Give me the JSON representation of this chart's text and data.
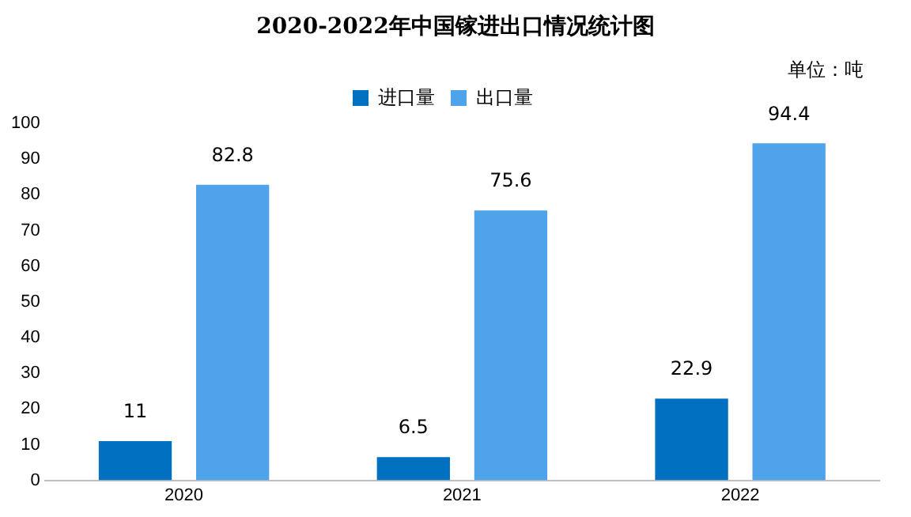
{
  "chart_data": {
    "type": "bar",
    "title": "2020-2022年中国镓进出口情况统计图",
    "annotations": [
      "单位：吨"
    ],
    "categories": [
      "2020",
      "2021",
      "2022"
    ],
    "series": [
      {
        "name": "进口量",
        "color": "#0070c0",
        "values": [
          11,
          6.5,
          22.9
        ]
      },
      {
        "name": "出口量",
        "color": "#4ea3ea",
        "values": [
          82.8,
          75.6,
          94.4
        ]
      }
    ],
    "ylim": [
      0,
      100
    ],
    "yticks": [
      0,
      10,
      20,
      30,
      40,
      50,
      60,
      70,
      80,
      90,
      100
    ],
    "grid": false,
    "legend": "top",
    "data_labels": true
  }
}
